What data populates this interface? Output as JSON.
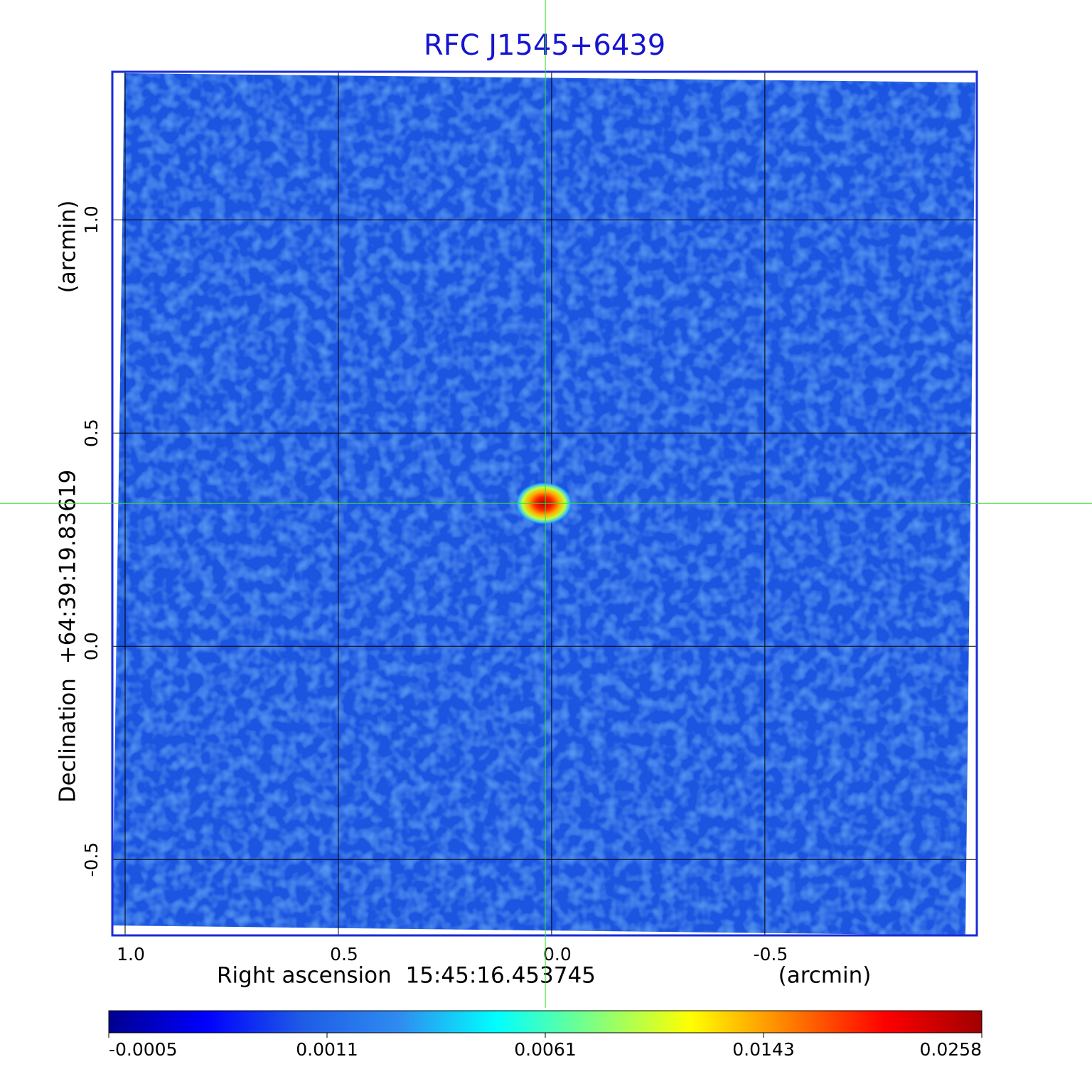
{
  "chart_data": {
    "type": "image",
    "title": "RFC J1545+6439",
    "x_label": "Right ascension  15:45:16.453745",
    "x_unit": "(arcmin)",
    "y_label": "Declination  +64:39:19.83619",
    "y_unit": "(arcmin)",
    "xlim": [
      1.03,
      -0.997
    ],
    "ylim": [
      -0.678,
      1.347
    ],
    "xticks": [
      {
        "value": 1,
        "label": "1.0"
      },
      0.5,
      {
        "value": 0,
        "label": "0.0"
      },
      -0.5
    ],
    "yticks": [
      {
        "value": 1,
        "label": "1.0"
      },
      0.5,
      {
        "value": 0,
        "label": "0.0"
      },
      -0.5
    ],
    "grid": true,
    "frame_color": "#1a2bd6",
    "title_color": "#1515d0",
    "crosshair_color": "#33dd33",
    "source": {
      "x": 0.018,
      "y": 0.335,
      "value": 0.0258
    },
    "colorbar": {
      "ticks": [
        -0.0005,
        0.0011,
        0.0061,
        0.0143,
        0.0258
      ],
      "colormap": [
        "#00008f",
        "#0000ff",
        "#1f5ce6",
        "#2f8cf0",
        "#00ffff",
        "#80ff80",
        "#ffff00",
        "#ff8000",
        "#ff0000",
        "#a00000"
      ]
    }
  }
}
